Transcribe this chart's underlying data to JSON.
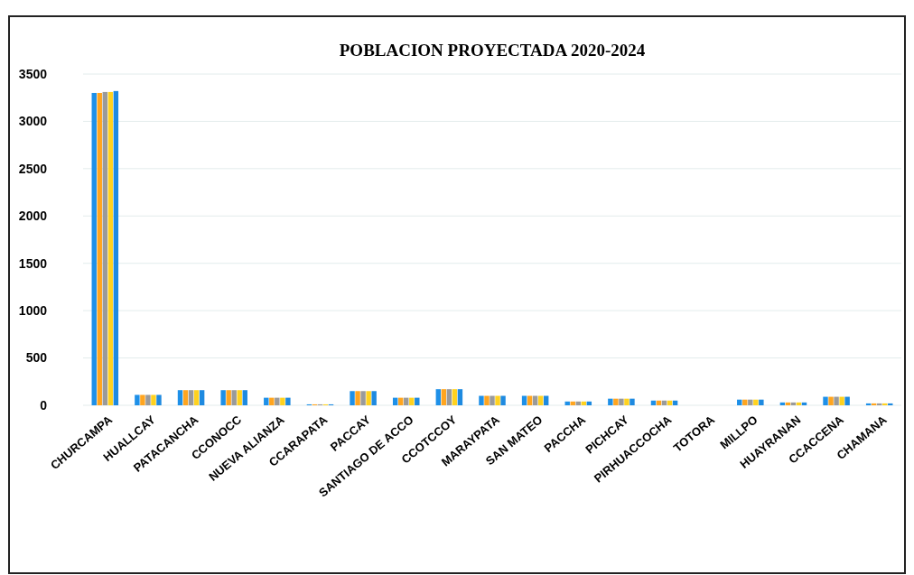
{
  "chart_data": {
    "type": "bar",
    "title": "POBLACION PROYECTADA 2020-2024",
    "categories": [
      "CHURCAMPA",
      "HUALLCAY",
      "PATACANCHA",
      "CCONOCC",
      "NUEVA ALIANZA",
      "CCARAPATA",
      "PACCAY",
      "SANTIAGO DE ACCO",
      "CCOTCCOY",
      "MARAYPATA",
      "SAN MATEO",
      "PACCHA",
      "PICHCAY",
      "PIRHUACCOCHA",
      "TOTORA",
      "MILLPO",
      "HUAYRANAN",
      "CCACCENA",
      "CHAMANA"
    ],
    "series": [
      {
        "color": "#1e90e8",
        "values": [
          3300,
          110,
          160,
          160,
          80,
          10,
          150,
          80,
          170,
          100,
          100,
          40,
          70,
          50,
          0,
          60,
          30,
          90,
          20
        ]
      },
      {
        "color": "#ffa51f",
        "values": [
          3300,
          110,
          160,
          160,
          80,
          10,
          150,
          80,
          170,
          100,
          100,
          40,
          70,
          50,
          0,
          60,
          30,
          90,
          20
        ]
      },
      {
        "color": "#9a9a9a",
        "values": [
          3310,
          110,
          160,
          160,
          80,
          10,
          150,
          80,
          170,
          100,
          100,
          40,
          70,
          50,
          0,
          60,
          30,
          90,
          20
        ]
      },
      {
        "color": "#ffd21f",
        "values": [
          3310,
          110,
          160,
          160,
          80,
          10,
          150,
          80,
          170,
          100,
          100,
          40,
          70,
          50,
          0,
          60,
          30,
          90,
          20
        ]
      },
      {
        "color": "#1e8ae0",
        "values": [
          3320,
          110,
          160,
          160,
          80,
          10,
          150,
          80,
          170,
          100,
          100,
          40,
          70,
          50,
          0,
          60,
          30,
          90,
          20
        ]
      }
    ],
    "ylim": [
      0,
      3500
    ],
    "yticks": [
      0,
      500,
      1000,
      1500,
      2000,
      2500,
      3000,
      3500
    ],
    "grid": "y"
  }
}
